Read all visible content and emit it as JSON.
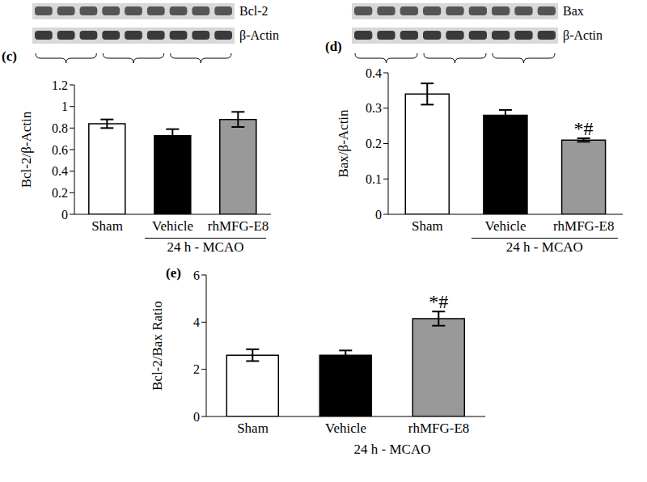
{
  "chart_data": [
    {
      "type": "bar",
      "title": "(c)",
      "y_label": "Bcl-2/β-Actin",
      "blot_labels": [
        "Bcl-2",
        "β-Actin"
      ],
      "categories": [
        "Sham",
        "Vehicle",
        "rhMFG-E8"
      ],
      "values": [
        0.84,
        0.73,
        0.88
      ],
      "errors": [
        0.04,
        0.06,
        0.07
      ],
      "significance": [
        null,
        null,
        null
      ],
      "colors": [
        "#ffffff",
        "#000000",
        "#999999"
      ],
      "group_label": "24 h - MCAO",
      "ylim": [
        0,
        1.2
      ],
      "yticks": [
        0,
        0.2,
        0.4,
        0.6,
        0.8,
        1,
        1.2
      ]
    },
    {
      "type": "bar",
      "title": "(d)",
      "y_label": "Bax/β-Actin",
      "blot_labels": [
        "Bax",
        "β-Actin"
      ],
      "categories": [
        "Sham",
        "Vehicle",
        "rhMFG-E8"
      ],
      "values": [
        0.34,
        0.28,
        0.21
      ],
      "errors": [
        0.03,
        0.015,
        0.005
      ],
      "significance": [
        null,
        null,
        "*#"
      ],
      "colors": [
        "#ffffff",
        "#000000",
        "#999999"
      ],
      "group_label": "24 h - MCAO",
      "ylim": [
        0,
        0.4
      ],
      "yticks": [
        0,
        0.1,
        0.2,
        0.3,
        0.4
      ]
    },
    {
      "type": "bar",
      "title": "(e)",
      "y_label": "Bcl-2/Bax Ratio",
      "categories": [
        "Sham",
        "Vehicle",
        "rhMFG-E8"
      ],
      "values": [
        2.6,
        2.6,
        4.15
      ],
      "errors": [
        0.25,
        0.2,
        0.3
      ],
      "significance": [
        null,
        null,
        "*#"
      ],
      "colors": [
        "#ffffff",
        "#000000",
        "#999999"
      ],
      "group_label": "24 h - MCAO",
      "ylim": [
        0,
        6
      ],
      "yticks": [
        0,
        2,
        4,
        6
      ]
    }
  ]
}
